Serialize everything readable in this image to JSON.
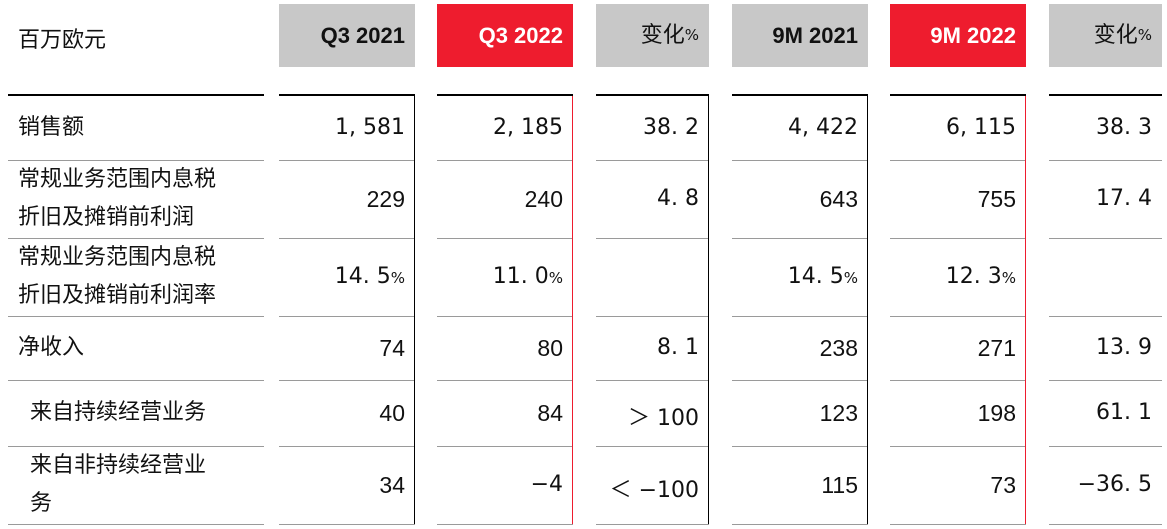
{
  "unit_label": "百万欧元",
  "headers": [
    {
      "label": "Q3  2021"
    },
    {
      "label": "Q3  2022"
    },
    {
      "label": "变化",
      "suffix": "%"
    },
    {
      "label": "9M  2021"
    },
    {
      "label": "9M  2022"
    },
    {
      "label": "变化",
      "suffix": "%"
    }
  ],
  "colors": {
    "accent_red": "#ee1c2e",
    "header_gray": "#c8c8c8"
  },
  "rows": [
    {
      "label_lines": [
        "销售额"
      ],
      "values": [
        "1, 581",
        "2, 185",
        "38. 2",
        "4, 422",
        "6, 115",
        "38. 3"
      ]
    },
    {
      "label_lines": [
        "常规业务范围内息税",
        "折旧及摊销前利润"
      ],
      "values": [
        "229",
        "240",
        "4. 8",
        "643",
        "755",
        "17. 4"
      ]
    },
    {
      "label_lines": [
        "常规业务范围内息税",
        "折旧及摊销前利润率"
      ],
      "values": [
        "14. 5%",
        "11. 0%",
        "",
        "14. 5%",
        "12. 3%",
        ""
      ]
    },
    {
      "label_lines": [
        "净收入"
      ],
      "values": [
        "74",
        "80",
        "8. 1",
        "238",
        "271",
        "13. 9"
      ]
    },
    {
      "label_lines": [
        "来自持续经营业务"
      ],
      "indent": true,
      "values": [
        "40",
        "84",
        "＞ 100",
        "123",
        "198",
        "61. 1"
      ]
    },
    {
      "label_lines": [
        "来自非持续经营业",
        "务"
      ],
      "indent": true,
      "values": [
        "34",
        "−4",
        "＜ −100",
        "115",
        "73",
        "−36. 5"
      ]
    }
  ]
}
